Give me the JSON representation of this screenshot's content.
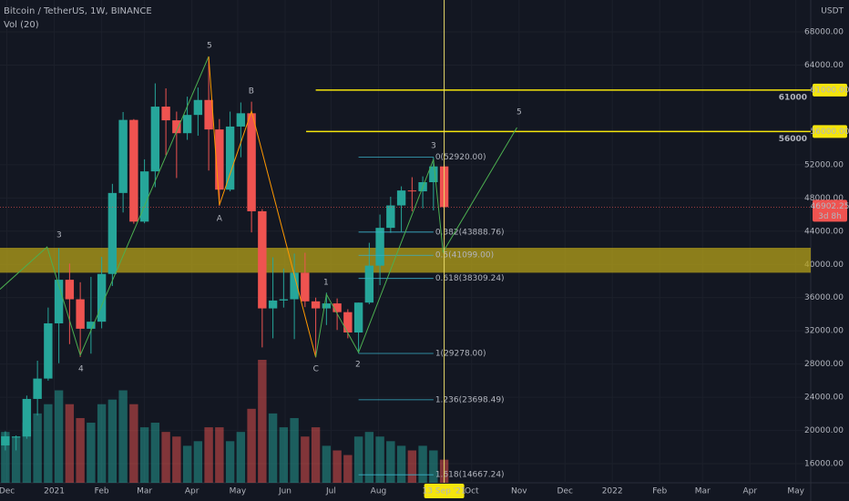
{
  "chart_data": {
    "type": "candlestick",
    "title": "Bitcoin / TetherUS, 1W, BINANCE",
    "currency": "USDT",
    "up_color": "#26a69a",
    "down_color": "#ef5350",
    "grid": true,
    "x": [
      0,
      1,
      2,
      3,
      4,
      5,
      6,
      7,
      8,
      9,
      10,
      11,
      12,
      13,
      14,
      15,
      16,
      17,
      18,
      19,
      20,
      21,
      22,
      23,
      24,
      25,
      26,
      27,
      28,
      29,
      30,
      31,
      32,
      33,
      34,
      35,
      36,
      37,
      38,
      39,
      40,
      41
    ],
    "open": [
      18200,
      19150,
      19270,
      23800,
      26250,
      32900,
      38150,
      35800,
      32250,
      33100,
      38850,
      48600,
      57400,
      45150,
      51200,
      59000,
      57350,
      55800,
      58000,
      59800,
      56250,
      49000,
      56600,
      58200,
      46400,
      34700,
      35650,
      35800,
      39000,
      35550,
      34700,
      35300,
      34250,
      31800,
      35400,
      39850,
      44400,
      47100,
      48900,
      48800,
      49900,
      51800
    ],
    "high": [
      19900,
      19400,
      24200,
      28400,
      34800,
      41950,
      40100,
      37850,
      38500,
      40900,
      49700,
      58350,
      57500,
      52650,
      61800,
      61200,
      58400,
      60200,
      61300,
      64850,
      57500,
      58400,
      59500,
      59600,
      46650,
      40850,
      39500,
      41300,
      41400,
      36000,
      36600,
      35900,
      34600,
      35400,
      42600,
      46000,
      48150,
      49400,
      50500,
      50600,
      52920,
      52000
    ],
    "low": [
      17600,
      17600,
      19000,
      21800,
      26000,
      28100,
      30400,
      28850,
      29250,
      32300,
      37400,
      46250,
      44900,
      44950,
      49300,
      53150,
      50400,
      55000,
      55500,
      51300,
      47050,
      48800,
      52900,
      43850,
      30000,
      31100,
      34800,
      31000,
      34850,
      28800,
      32700,
      32100,
      31100,
      29300,
      35200,
      37500,
      43800,
      43950,
      46400,
      46750,
      46500,
      43000
    ],
    "close": [
      19300,
      19270,
      23800,
      26250,
      32900,
      38150,
      35800,
      32250,
      33100,
      38850,
      48600,
      57400,
      45150,
      51200,
      59000,
      57350,
      55800,
      58000,
      59800,
      56250,
      49000,
      56600,
      58200,
      46400,
      34700,
      35650,
      35800,
      39000,
      35550,
      34700,
      35300,
      34250,
      31800,
      35400,
      39850,
      44400,
      47100,
      48900,
      48800,
      49900,
      51800,
      46902.25
    ],
    "volume": {
      "name": "Vol (20)",
      "values": [
        55,
        50,
        65,
        75,
        85,
        100,
        85,
        70,
        65,
        85,
        90,
        100,
        85,
        60,
        65,
        55,
        50,
        40,
        45,
        60,
        60,
        45,
        55,
        80,
        133,
        75,
        60,
        70,
        50,
        60,
        40,
        35,
        30,
        50,
        55,
        50,
        45,
        40,
        35,
        40,
        35,
        25
      ]
    },
    "xlim": [
      -0.5,
      75.25
    ],
    "xticks": [
      {
        "value": 0.14,
        "label": "Dec"
      },
      {
        "value": 4.57,
        "label": "2021"
      },
      {
        "value": 9.0,
        "label": "Feb"
      },
      {
        "value": 13.0,
        "label": "Mar"
      },
      {
        "value": 17.43,
        "label": "Apr"
      },
      {
        "value": 21.71,
        "label": "May"
      },
      {
        "value": 26.14,
        "label": "Jun"
      },
      {
        "value": 30.43,
        "label": "Jul"
      },
      {
        "value": 34.86,
        "label": "Aug"
      },
      {
        "value": 43.57,
        "label": "Oct"
      },
      {
        "value": 48.0,
        "label": "Nov"
      },
      {
        "value": 52.29,
        "label": "Dec"
      },
      {
        "value": 56.71,
        "label": "2022"
      },
      {
        "value": 61.14,
        "label": "Feb"
      },
      {
        "value": 65.14,
        "label": "Mar"
      },
      {
        "value": 69.57,
        "label": "Apr"
      },
      {
        "value": 73.86,
        "label": "May"
      }
    ],
    "ylim": [
      13700,
      71840
    ],
    "yticks": [
      {
        "value": 16000,
        "label": "16000.00"
      },
      {
        "value": 20000,
        "label": "20000.00"
      },
      {
        "value": 24000,
        "label": "24000.00"
      },
      {
        "value": 28000,
        "label": "28000.00"
      },
      {
        "value": 32000,
        "label": "32000.00"
      },
      {
        "value": 36000,
        "label": "36000.00"
      },
      {
        "value": 40000,
        "label": "40000.00"
      },
      {
        "value": 44000,
        "label": "44000.00"
      },
      {
        "value": 48000,
        "label": "48000.00"
      },
      {
        "value": 52000,
        "label": "52000.00"
      },
      {
        "value": 64000,
        "label": "64000.00"
      },
      {
        "value": 68000,
        "label": "68000.00"
      }
    ],
    "zone": {
      "from": 39000,
      "to": 42000,
      "color": "#b5a219"
    },
    "levels": [
      {
        "value": 61000,
        "label": "61000",
        "price_label": "61000.00",
        "start": 29.0
      },
      {
        "value": 56000,
        "label": "56000",
        "price_label": "56000.00",
        "start": 28.1
      }
    ],
    "fib": {
      "start": 33.0,
      "end": 40.0,
      "color": "#3ab0c8",
      "levels": [
        {
          "value": 52920,
          "label": "0(52920.00)"
        },
        {
          "value": 43888.76,
          "label": "0.382(43888.76)"
        },
        {
          "value": 41099,
          "label": "0.5(41099.00)"
        },
        {
          "value": 38309.24,
          "label": "0.618(38309.24)"
        },
        {
          "value": 29278,
          "label": "1(29278.00)"
        },
        {
          "value": 23698.49,
          "label": "1.236(23698.49)"
        },
        {
          "value": 14667.24,
          "label": "1.618(14667.24)"
        }
      ]
    },
    "waves": [
      {
        "color": "#4caf50",
        "x": [
          -0.5,
          3.9,
          7.0,
          19.0
        ],
        "y": [
          37000,
          42100,
          29050,
          65040
        ]
      },
      {
        "color": "#ff9800",
        "x": [
          19.0,
          20.0,
          23.0,
          29.0
        ],
        "y": [
          65040,
          47150,
          58450,
          28830
        ]
      },
      {
        "color": "#4caf50",
        "x": [
          29.0,
          30.0,
          33.0,
          40.0,
          40.9,
          47.8
        ],
        "y": [
          28830,
          36400,
          29400,
          52640,
          41500,
          56480
        ]
      }
    ],
    "wave_labels": [
      {
        "text": "5",
        "x": 19.06,
        "y": 66350,
        "color": "#4caf50"
      },
      {
        "text": "B",
        "x": 22.98,
        "y": 60870,
        "color": "#ff9800"
      },
      {
        "text": "A",
        "x": 20.0,
        "y": 45510,
        "color": "#ff9800"
      },
      {
        "text": "3",
        "x": 5.02,
        "y": 43530,
        "color": "#4caf50"
      },
      {
        "text": "4",
        "x": 7.06,
        "y": 27410,
        "color": "#4caf50"
      },
      {
        "text": "C",
        "x": 29.02,
        "y": 27410,
        "color": "#ff9800"
      },
      {
        "text": "1",
        "x": 29.96,
        "y": 37830,
        "color": "#4caf50"
      },
      {
        "text": "2",
        "x": 32.94,
        "y": 27960,
        "color": "#4caf50"
      },
      {
        "text": "3",
        "x": 40.0,
        "y": 54290,
        "color": "#4caf50"
      },
      {
        "text": "5",
        "x": 48.0,
        "y": 58350,
        "color": "#4caf50"
      }
    ],
    "last_price": {
      "value": 46902.25,
      "label": "46902.25",
      "countdown": "3d 8h"
    },
    "crosshair": {
      "x": 41,
      "label": "13 Sep '21"
    }
  }
}
